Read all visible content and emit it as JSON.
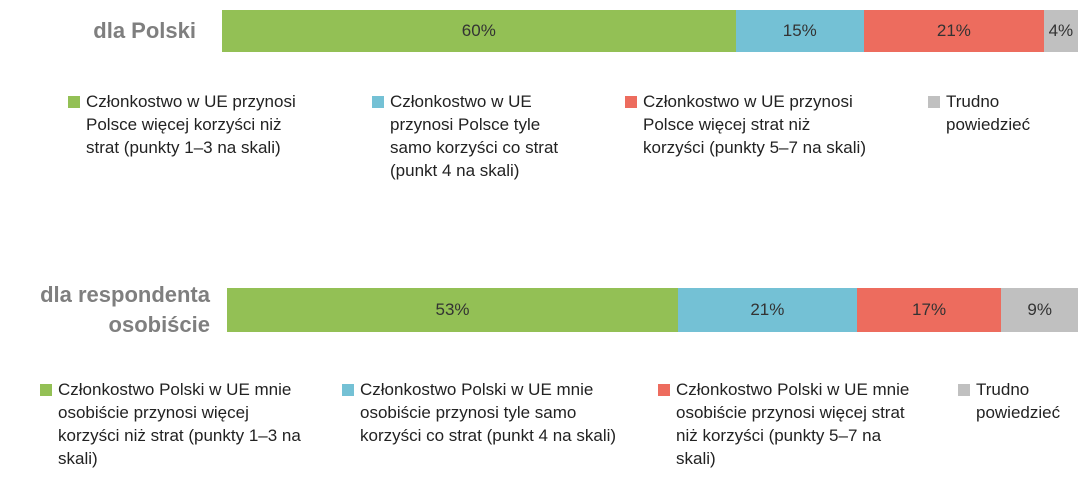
{
  "chart_data": [
    {
      "type": "bar",
      "categories": [
        "dla Polski"
      ],
      "series": [
        {
          "name": "Członkostwo w UE przynosi Polsce więcej korzyści niż strat (punkty 1–3 na skali)",
          "color": "#93c055",
          "values": [
            60
          ],
          "value_labels": [
            "60%"
          ]
        },
        {
          "name": "Członkostwo w UE przynosi Polsce tyle samo korzyści co strat (punkt 4 na skali)",
          "color": "#74c1d5",
          "values": [
            15
          ],
          "value_labels": [
            "15%"
          ]
        },
        {
          "name": "Członkostwo w UE przynosi Polsce więcej strat niż korzyści (punkty 5–7 na skali)",
          "color": "#ed6c5e",
          "values": [
            21
          ],
          "value_labels": [
            "21%"
          ]
        },
        {
          "name": "Trudno powiedzieć",
          "color": "#c0c0c0",
          "values": [
            4
          ],
          "value_labels": [
            "4%"
          ]
        }
      ]
    },
    {
      "type": "bar",
      "categories": [
        "dla respondenta osobiście"
      ],
      "series": [
        {
          "name": "Członkostwo Polski w UE mnie osobiście przynosi więcej korzyści niż strat (punkty 1–3 na skali)",
          "color": "#93c055",
          "values": [
            53
          ],
          "value_labels": [
            "53%"
          ]
        },
        {
          "name": "Członkostwo Polski w UE mnie osobiście przynosi tyle samo korzyści co strat (punkt 4 na skali)",
          "color": "#74c1d5",
          "values": [
            21
          ],
          "value_labels": [
            "21%"
          ]
        },
        {
          "name": "Członkostwo Polski w UE mnie osobiście przynosi więcej strat niż korzyści (punkty 5–7 na skali)",
          "color": "#ed6c5e",
          "values": [
            17
          ],
          "value_labels": [
            "17%"
          ]
        },
        {
          "name": "Trudno powiedzieć",
          "color": "#c0c0c0",
          "values": [
            9
          ],
          "value_labels": [
            "9%"
          ]
        }
      ]
    }
  ]
}
